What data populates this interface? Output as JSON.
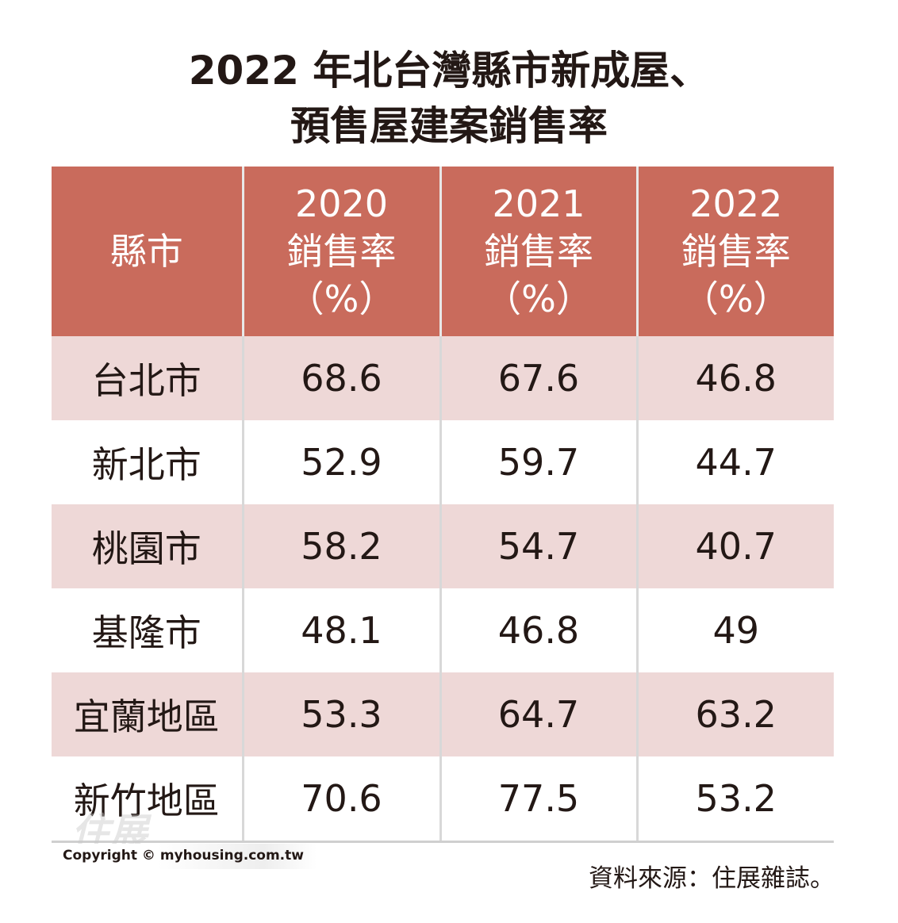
{
  "title_line1": "2022 年北台灣縣市新成屋、",
  "title_line2": "預售屋建案銷售率",
  "chart_data": {
    "type": "table",
    "columns": [
      "縣市",
      "2020\n銷售率\n（%）",
      "2021\n銷售率\n（%）",
      "2022\n銷售率\n（%）"
    ],
    "header": [
      {
        "lines": [
          "縣市"
        ]
      },
      {
        "lines": [
          "2020",
          "銷售率",
          "（%）"
        ]
      },
      {
        "lines": [
          "2021",
          "銷售率",
          "（%）"
        ]
      },
      {
        "lines": [
          "2022",
          "銷售率",
          "（%）"
        ]
      }
    ],
    "rows": [
      [
        "台北市",
        "68.6",
        "67.6",
        "46.8"
      ],
      [
        "新北市",
        "52.9",
        "59.7",
        "44.7"
      ],
      [
        "桃園市",
        "58.2",
        "54.7",
        "40.7"
      ],
      [
        "基隆市",
        "48.1",
        "46.8",
        "49"
      ],
      [
        "宜蘭地區",
        "53.3",
        "64.7",
        "63.2"
      ],
      [
        "新竹地區",
        "70.6",
        "77.5",
        "53.2"
      ]
    ]
  },
  "colors": {
    "header_bg": "#c96b5c",
    "stripe_bg": "#eed8d7",
    "text": "#231815"
  },
  "copyright": "Copyright © myhousing.com.tw",
  "source": "資料來源：住展雜誌。",
  "watermark": "住展"
}
